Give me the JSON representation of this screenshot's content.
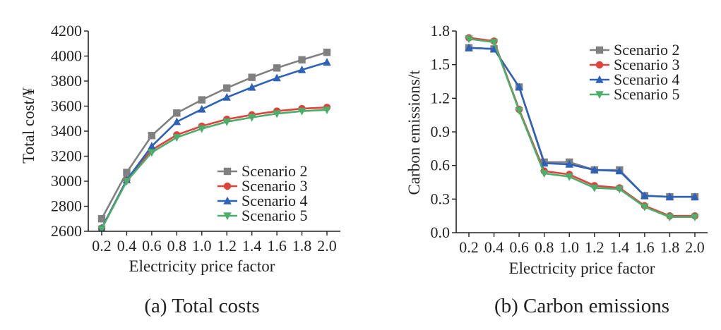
{
  "colors": {
    "scenario2": "#808080",
    "scenario3": "#e0423b",
    "scenario4": "#2e62b8",
    "scenario5": "#4cae6a",
    "axis": "#222222"
  },
  "chart_data": [
    {
      "id": "a",
      "type": "line",
      "caption": "(a) Total costs",
      "xlabel": "Electricity price factor",
      "ylabel": "Total cost/¥",
      "x": [
        0.2,
        0.4,
        0.6,
        0.8,
        1.0,
        1.2,
        1.4,
        1.6,
        1.8,
        2.0
      ],
      "xticks": [
        "0.2",
        "0.4",
        "0.6",
        "0.8",
        "1.0",
        "1.2",
        "1.4",
        "1.6",
        "1.8",
        "2.0"
      ],
      "ylim": [
        2600,
        4200
      ],
      "yticks": [
        "2600",
        "2800",
        "3000",
        "3200",
        "3400",
        "3600",
        "3800",
        "4000",
        "4200"
      ],
      "grid": false,
      "legend_position": "bottom-right",
      "series": [
        {
          "name": "Scenario 2",
          "marker": "square",
          "color": "#808080",
          "values": [
            2700,
            3070,
            3365,
            3545,
            3650,
            3745,
            3830,
            3905,
            3970,
            4030
          ]
        },
        {
          "name": "Scenario 3",
          "marker": "circle",
          "color": "#e0423b",
          "values": [
            2625,
            3010,
            3250,
            3370,
            3440,
            3495,
            3530,
            3560,
            3580,
            3590
          ]
        },
        {
          "name": "Scenario 4",
          "marker": "triangle-up",
          "color": "#2e62b8",
          "values": [
            2625,
            3010,
            3280,
            3475,
            3575,
            3670,
            3750,
            3825,
            3890,
            3950
          ]
        },
        {
          "name": "Scenario 5",
          "marker": "triangle-down",
          "color": "#4cae6a",
          "values": [
            2620,
            3000,
            3230,
            3350,
            3420,
            3475,
            3510,
            3540,
            3560,
            3570
          ]
        }
      ]
    },
    {
      "id": "b",
      "type": "line",
      "caption": "(b) Carbon emissions",
      "xlabel": "Electricity price factor",
      "ylabel": "Carbon emissions/t",
      "x": [
        0.2,
        0.4,
        0.6,
        0.8,
        1.0,
        1.2,
        1.4,
        1.6,
        1.8,
        2.0
      ],
      "xticks": [
        "0.2",
        "0.4",
        "0.6",
        "0.8",
        "1.0",
        "1.2",
        "1.4",
        "1.6",
        "1.8",
        "2.0"
      ],
      "ylim": [
        0.0,
        1.8
      ],
      "yticks": [
        "0.0",
        "0.3",
        "0.6",
        "0.9",
        "1.2",
        "1.5",
        "1.8"
      ],
      "grid": false,
      "legend_position": "top-right",
      "series": [
        {
          "name": "Scenario 2",
          "marker": "square",
          "color": "#808080",
          "values": [
            1.65,
            1.64,
            1.3,
            0.63,
            0.63,
            0.56,
            0.56,
            0.33,
            0.32,
            0.32
          ]
        },
        {
          "name": "Scenario 3",
          "marker": "circle",
          "color": "#e0423b",
          "values": [
            1.74,
            1.71,
            1.1,
            0.55,
            0.52,
            0.42,
            0.4,
            0.24,
            0.15,
            0.15
          ]
        },
        {
          "name": "Scenario 4",
          "marker": "triangle-up",
          "color": "#2e62b8",
          "values": [
            1.65,
            1.64,
            1.3,
            0.62,
            0.61,
            0.56,
            0.55,
            0.33,
            0.32,
            0.32
          ]
        },
        {
          "name": "Scenario 5",
          "marker": "triangle-down",
          "color": "#4cae6a",
          "values": [
            1.73,
            1.7,
            1.09,
            0.53,
            0.5,
            0.4,
            0.39,
            0.23,
            0.14,
            0.14
          ]
        }
      ]
    }
  ]
}
